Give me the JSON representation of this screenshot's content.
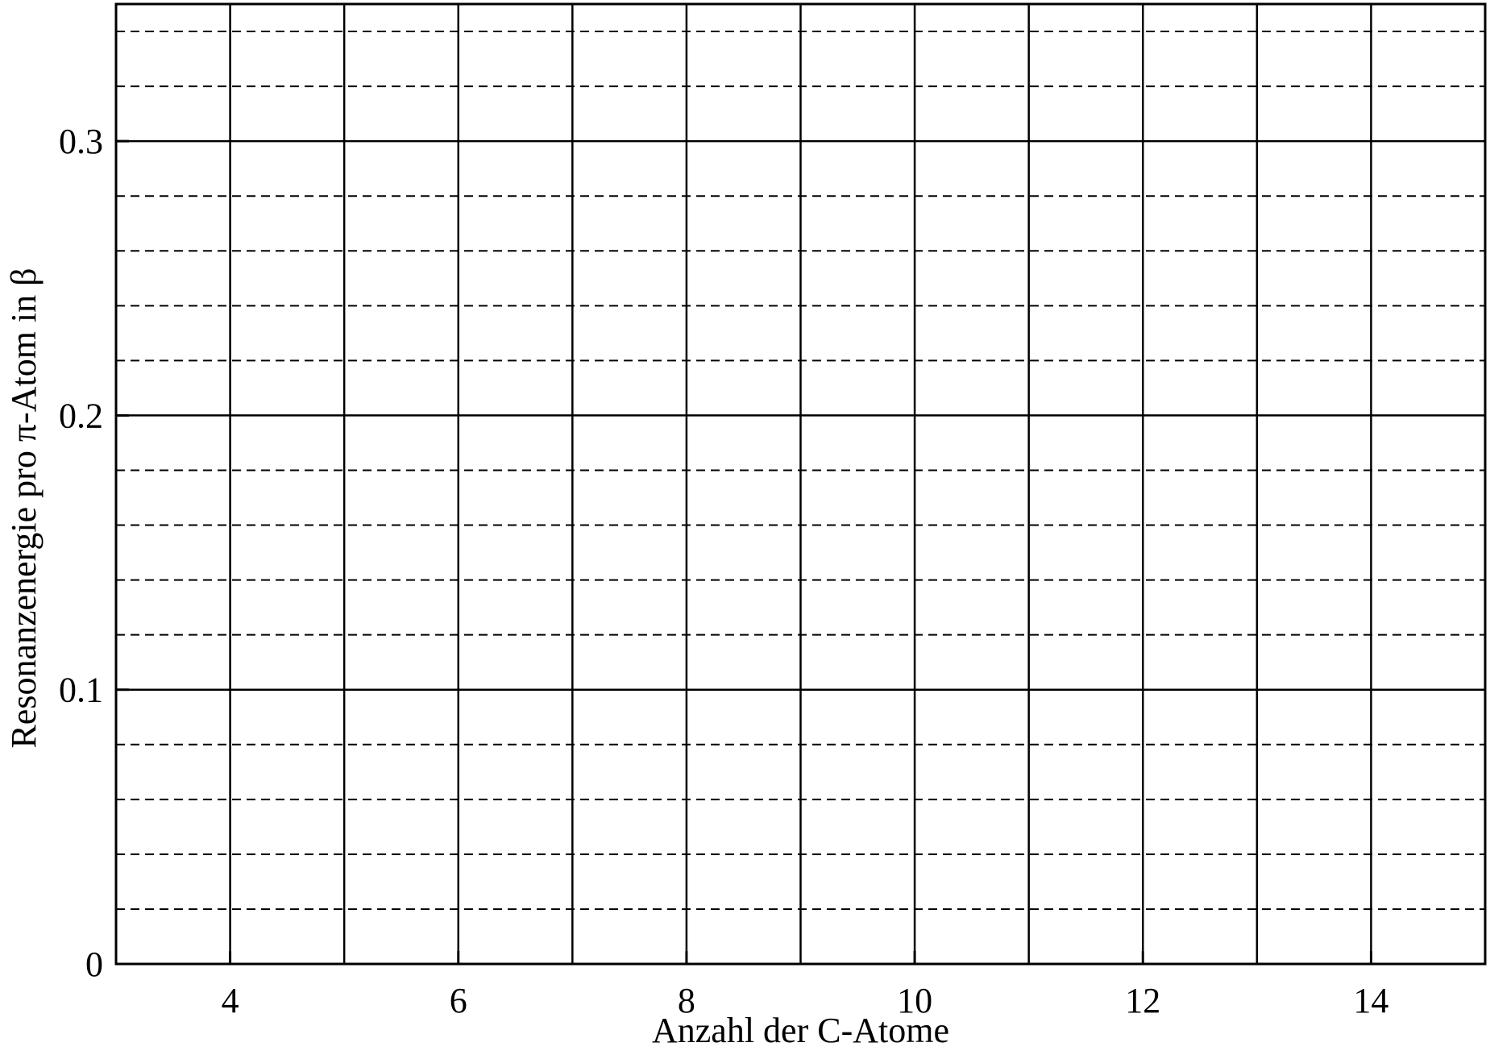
{
  "chart_data": {
    "type": "line",
    "title": "",
    "xlabel": "Anzahl der C-Atome",
    "ylabel": "Resonanzenergie pro π-Atom in β",
    "xlim": [
      3,
      15
    ],
    "ylim": [
      0,
      0.35
    ],
    "x_ticks": [
      4,
      6,
      8,
      10,
      12,
      14
    ],
    "x_tick_labels": [
      "4",
      "6",
      "8",
      "10",
      "12",
      "14"
    ],
    "y_ticks": [
      0,
      0.1,
      0.2,
      0.3
    ],
    "y_tick_labels": [
      "0",
      "0.1",
      "0.2",
      "0.3"
    ],
    "x_grid_major": [
      4,
      5,
      6,
      7,
      8,
      9,
      10,
      11,
      12,
      13,
      14
    ],
    "y_grid_major": [
      0.1,
      0.2,
      0.3
    ],
    "y_grid_minor": [
      0.02,
      0.04,
      0.06,
      0.08,
      0.12,
      0.14,
      0.16,
      0.18,
      0.22,
      0.24,
      0.26,
      0.28,
      0.32,
      0.34
    ],
    "grid": true,
    "series": []
  }
}
